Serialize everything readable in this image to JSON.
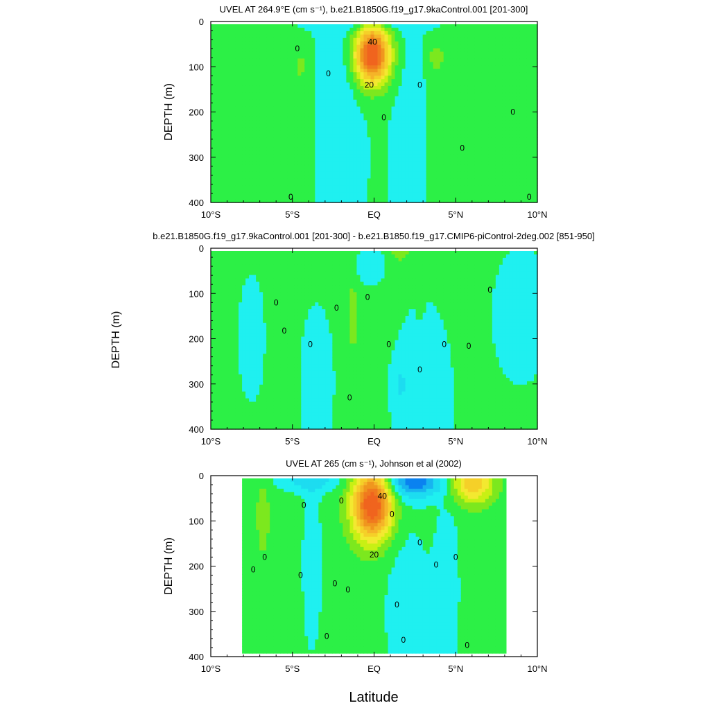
{
  "figure": {
    "xlabel": "Latitude",
    "ylabel_side": "DEPTH (m)"
  },
  "chart_data": [
    {
      "type": "heatmap",
      "title": "UVEL AT 264.9°E (cm s⁻¹), b.e21.B1850G.f19_g17.9kaControl.001 [201-300]",
      "ylabel": "DEPTH (m)",
      "xlim": [
        -10,
        10
      ],
      "ylim": [
        400,
        0
      ],
      "xticks": [
        -10,
        -5,
        0,
        5,
        10
      ],
      "xtick_labels": [
        "10°S",
        "5°S",
        "EQ",
        "5°N",
        "10°N"
      ],
      "yticks": [
        0,
        100,
        200,
        300,
        400
      ],
      "ytick_labels": [
        "0",
        "100",
        "200",
        "300",
        "400"
      ],
      "contour_labels": [
        "40",
        "20",
        "0"
      ],
      "colors": {
        "low": "#1ff0f0",
        "zero": "#2cf046",
        "mid": "#f3e930",
        "high": "#f0641e"
      },
      "features": [
        {
          "kind": "eastward core",
          "lat": -0.1,
          "depth": 75,
          "max": 45
        },
        {
          "kind": "positive band",
          "lat_range": [
            -10,
            -5.5
          ],
          "depth_range": [
            50,
            400
          ],
          "value": 5
        },
        {
          "kind": "positive band",
          "lat_range": [
            3,
            9.5
          ],
          "depth_range": [
            40,
            400
          ],
          "value": 5
        }
      ]
    },
    {
      "type": "heatmap",
      "title": "b.e21.B1850G.f19_g17.9kaControl.001 [201-300] - b.e21.B1850.f19_g17.CMIP6-piControl-2deg.002 [851-950]",
      "ylabel": "",
      "xlim": [
        -10,
        10
      ],
      "ylim": [
        400,
        0
      ],
      "xticks": [
        -10,
        -5,
        0,
        5,
        10
      ],
      "xtick_labels": [
        "10°S",
        "5°S",
        "EQ",
        "5°N",
        "10°N"
      ],
      "yticks": [
        0,
        100,
        200,
        300,
        400
      ],
      "ytick_labels": [
        "0",
        "100",
        "200",
        "300",
        "400"
      ],
      "contour_labels": [
        "0"
      ],
      "colors": {
        "low": "#1ff0f0",
        "zero": "#2cf046",
        "mid": "#f3e930",
        "high": "#f0641e"
      },
      "features": [
        {
          "kind": "small positive",
          "lat": 1.6,
          "depth": 10,
          "max": 8
        },
        {
          "kind": "negative pocket",
          "lat": -0.3,
          "depth": 50,
          "min": -6
        }
      ]
    },
    {
      "type": "heatmap",
      "title": "UVEL AT 265 (cm s⁻¹), Johnson et al (2002)",
      "ylabel": "DEPTH (m)",
      "xlim": [
        -10,
        10
      ],
      "ylim": [
        400,
        0
      ],
      "xticks": [
        -10,
        -5,
        0,
        5,
        10
      ],
      "xtick_labels": [
        "10°S",
        "5°S",
        "EQ",
        "5°N",
        "10°N"
      ],
      "yticks": [
        0,
        100,
        200,
        300,
        400
      ],
      "ytick_labels": [
        "0",
        "100",
        "200",
        "300",
        "400"
      ],
      "contour_labels": [
        "40",
        "20",
        "0"
      ],
      "data_lat_range": [
        -8,
        8
      ],
      "colors": {
        "low": "#1ff0f0",
        "zero": "#2cf046",
        "mid": "#f3e930",
        "high": "#f0641e"
      },
      "features": [
        {
          "kind": "eastward core",
          "lat": -0.1,
          "depth": 65,
          "max": 45
        },
        {
          "kind": "surface jet",
          "lat": 6,
          "depth": 20,
          "max": 20
        },
        {
          "kind": "westward surface",
          "lat": 2.5,
          "depth": 15,
          "min": -20
        }
      ]
    }
  ]
}
